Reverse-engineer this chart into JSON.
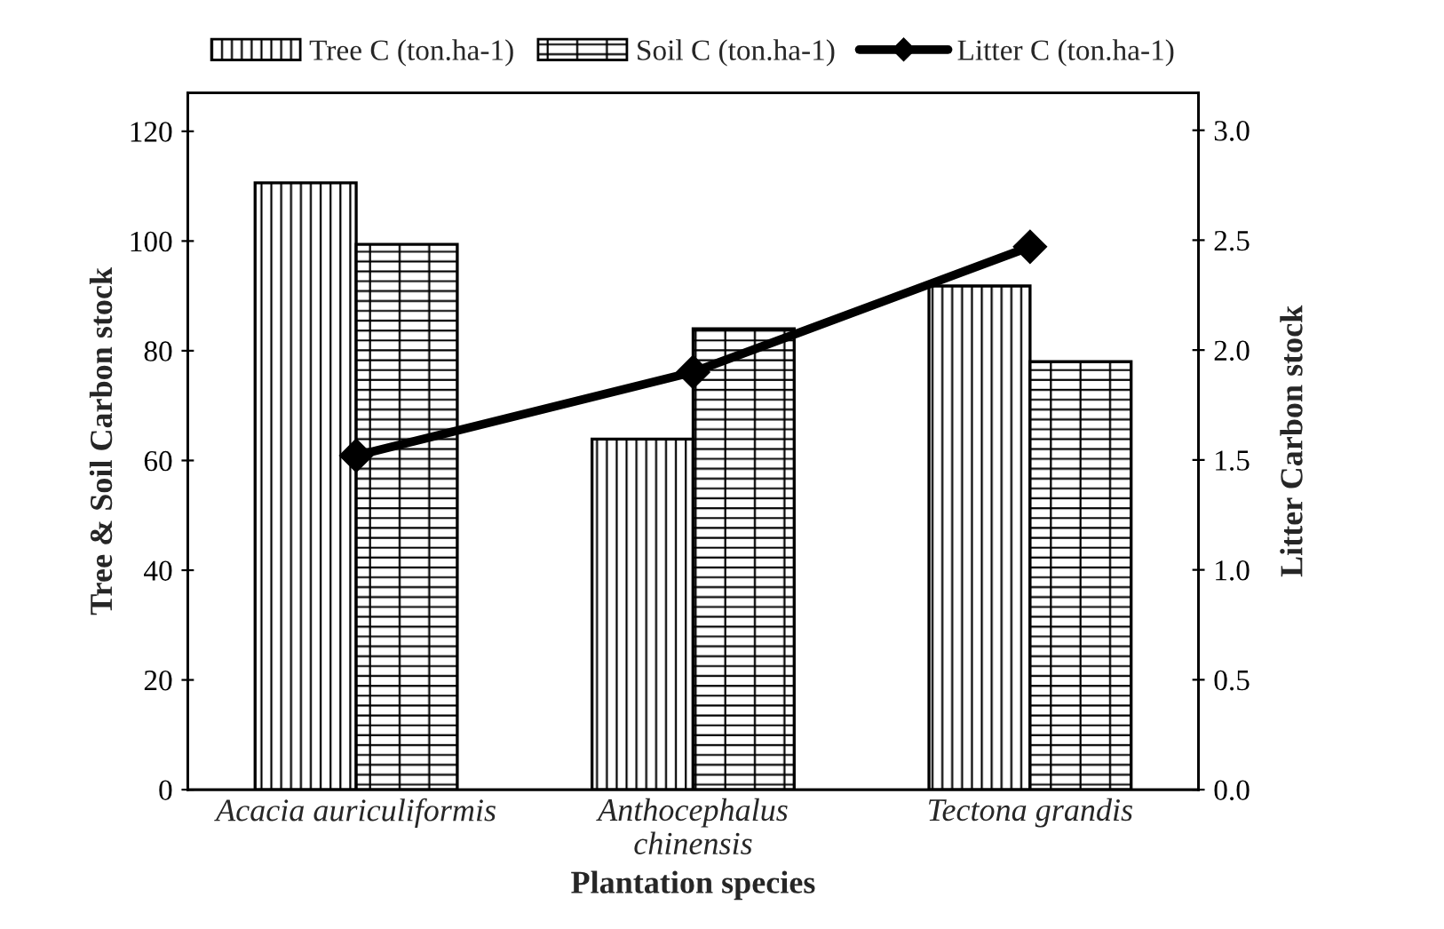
{
  "chart_data": {
    "type": "bar",
    "xlabel": "Plantation species",
    "ylabel": "Tree & Soil Carbon stock",
    "y2label": "Litter Carbon stock",
    "categories": [
      "Acacia auriculiformis",
      "Anthocephalus\nchinensis",
      "Tectona grandis"
    ],
    "series": [
      {
        "name": "Tree C (ton.ha-1)",
        "color": "#000000",
        "values": [
          110.6,
          63.9,
          91.8
        ]
      },
      {
        "name": "Soil C (ton.ha-1)",
        "color": "#000000",
        "values": [
          99.4,
          84.0,
          78.0
        ]
      },
      {
        "name": "Litter C (ton.ha-1)",
        "type": "line",
        "axis": "y2",
        "color": "#000000",
        "marker": "diamond",
        "values": [
          1.52,
          1.9,
          2.47
        ]
      }
    ],
    "ylim": [
      0,
      127
    ],
    "yticks": [
      0,
      20,
      40,
      60,
      80,
      100,
      120
    ],
    "y2lim": [
      0,
      3.17
    ],
    "y2ticks": [
      {
        "value": 0,
        "label": "0.0"
      },
      {
        "value": 0.5,
        "label": "0.5"
      },
      {
        "value": 1,
        "label": "1.0"
      },
      {
        "value": 1.5,
        "label": "1.5"
      },
      {
        "value": 2,
        "label": "2.0"
      },
      {
        "value": 2.5,
        "label": "2.5"
      },
      {
        "value": 3,
        "label": "3.0"
      }
    ],
    "grid": false,
    "legend": "top"
  }
}
